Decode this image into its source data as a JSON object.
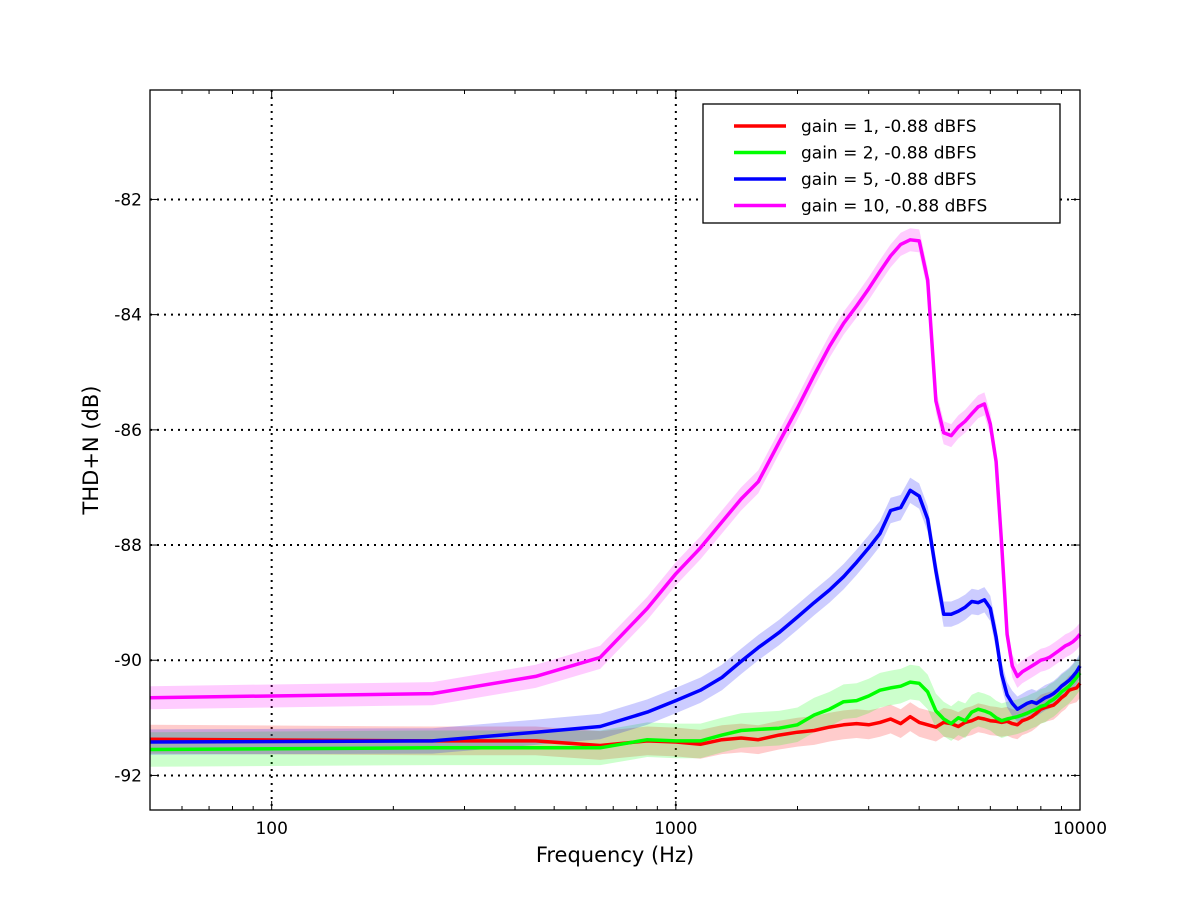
{
  "chart_data": {
    "type": "line",
    "xlabel": "Frequency (Hz)",
    "ylabel": "THD+N (dB)",
    "x_scale": "log",
    "xlim": [
      50,
      10000
    ],
    "ylim": [
      -92.6,
      -80.1
    ],
    "grid": true,
    "legend_position": "top-right",
    "x_ticks": [
      {
        "value": 100,
        "label": "100"
      },
      {
        "value": 1000,
        "label": "1000"
      },
      {
        "value": 10000,
        "label": "10000"
      }
    ],
    "y_ticks": [
      {
        "value": -82,
        "label": "-82"
      },
      {
        "value": -84,
        "label": "-84"
      },
      {
        "value": -86,
        "label": "-86"
      },
      {
        "value": -88,
        "label": "-88"
      },
      {
        "value": -90,
        "label": "-90"
      },
      {
        "value": -92,
        "label": "-92"
      }
    ],
    "series": [
      {
        "name": "gain = 1, -0.88 dBFS",
        "color": "#ff0000",
        "band": 0.25,
        "x": [
          50,
          250,
          450,
          650,
          850,
          1000,
          1150,
          1300,
          1450,
          1600,
          1800,
          2000,
          2200,
          2400,
          2600,
          2800,
          3000,
          3200,
          3400,
          3600,
          3800,
          4000,
          4200,
          4400,
          4600,
          4800,
          5000,
          5200,
          5400,
          5600,
          5800,
          6000,
          6200,
          6400,
          6600,
          6800,
          7000,
          7200,
          7400,
          7600,
          7800,
          8000,
          8200,
          8400,
          8600,
          8800,
          9000,
          9200,
          9400,
          9600,
          9800,
          10000
        ],
        "y": [
          -91.37,
          -91.4,
          -91.4,
          -91.48,
          -91.4,
          -91.42,
          -91.46,
          -91.38,
          -91.35,
          -91.38,
          -91.3,
          -91.25,
          -91.22,
          -91.16,
          -91.12,
          -91.1,
          -91.12,
          -91.08,
          -91.02,
          -91.1,
          -90.98,
          -91.08,
          -91.12,
          -91.16,
          -91.08,
          -91.1,
          -91.15,
          -91.08,
          -91.05,
          -91.0,
          -91.02,
          -91.05,
          -91.06,
          -91.08,
          -91.06,
          -91.1,
          -91.12,
          -91.05,
          -91.02,
          -90.98,
          -90.92,
          -90.85,
          -90.82,
          -90.8,
          -90.78,
          -90.72,
          -90.65,
          -90.6,
          -90.52,
          -90.5,
          -90.48,
          -90.4
        ]
      },
      {
        "name": "gain = 2, -0.88 dBFS",
        "color": "#00ff00",
        "band": 0.3,
        "x": [
          50,
          250,
          450,
          650,
          850,
          1000,
          1150,
          1300,
          1450,
          1600,
          1800,
          2000,
          2200,
          2400,
          2600,
          2800,
          3000,
          3200,
          3400,
          3600,
          3800,
          4000,
          4200,
          4400,
          4600,
          4800,
          5000,
          5200,
          5400,
          5600,
          5800,
          6000,
          6200,
          6400,
          6600,
          6800,
          7000,
          7200,
          7400,
          7600,
          7800,
          8000,
          8200,
          8400,
          8600,
          8800,
          9000,
          9200,
          9400,
          9600,
          9800,
          10000
        ],
        "y": [
          -91.55,
          -91.52,
          -91.52,
          -91.52,
          -91.38,
          -91.4,
          -91.4,
          -91.3,
          -91.22,
          -91.2,
          -91.18,
          -91.12,
          -90.95,
          -90.85,
          -90.72,
          -90.7,
          -90.62,
          -90.52,
          -90.48,
          -90.45,
          -90.38,
          -90.4,
          -90.55,
          -90.88,
          -91.02,
          -91.1,
          -91.0,
          -91.05,
          -90.9,
          -90.85,
          -90.88,
          -90.92,
          -91.0,
          -91.05,
          -91.02,
          -91.0,
          -90.98,
          -90.95,
          -90.92,
          -90.88,
          -90.85,
          -90.8,
          -90.78,
          -90.72,
          -90.68,
          -90.62,
          -90.55,
          -90.5,
          -90.45,
          -90.38,
          -90.3,
          -90.22
        ]
      },
      {
        "name": "gain = 5, -0.88 dBFS",
        "color": "#0000ff",
        "band": 0.22,
        "x": [
          50,
          250,
          450,
          650,
          850,
          1000,
          1150,
          1300,
          1450,
          1600,
          1800,
          2000,
          2200,
          2400,
          2600,
          2800,
          3000,
          3200,
          3400,
          3600,
          3800,
          4000,
          4200,
          4400,
          4600,
          4800,
          5000,
          5200,
          5400,
          5600,
          5800,
          6000,
          6200,
          6400,
          6600,
          6800,
          7000,
          7200,
          7400,
          7600,
          7800,
          8000,
          8200,
          8400,
          8600,
          8800,
          9000,
          9200,
          9400,
          9600,
          9800,
          10000
        ],
        "y": [
          -91.42,
          -91.4,
          -91.25,
          -91.15,
          -90.9,
          -90.7,
          -90.52,
          -90.3,
          -90.02,
          -89.78,
          -89.52,
          -89.25,
          -89.0,
          -88.78,
          -88.55,
          -88.3,
          -88.05,
          -87.8,
          -87.4,
          -87.35,
          -87.05,
          -87.15,
          -87.55,
          -88.45,
          -89.2,
          -89.2,
          -89.15,
          -89.08,
          -88.98,
          -89.0,
          -88.95,
          -89.1,
          -89.6,
          -90.25,
          -90.6,
          -90.75,
          -90.85,
          -90.8,
          -90.75,
          -90.72,
          -90.75,
          -90.7,
          -90.65,
          -90.62,
          -90.58,
          -90.52,
          -90.45,
          -90.4,
          -90.35,
          -90.28,
          -90.2,
          -90.1
        ]
      },
      {
        "name": "gain = 10, -0.88 dBFS",
        "color": "#ff00ff",
        "band": 0.2,
        "x": [
          50,
          250,
          450,
          650,
          850,
          1000,
          1150,
          1300,
          1450,
          1600,
          1800,
          2000,
          2200,
          2400,
          2600,
          2800,
          3000,
          3200,
          3400,
          3600,
          3800,
          4000,
          4200,
          4400,
          4600,
          4800,
          5000,
          5200,
          5400,
          5600,
          5800,
          6000,
          6200,
          6400,
          6600,
          6800,
          7000,
          7200,
          7400,
          7600,
          7800,
          8000,
          8200,
          8400,
          8600,
          8800,
          9000,
          9200,
          9400,
          9600,
          9800,
          10000
        ],
        "y": [
          -90.65,
          -90.58,
          -90.28,
          -89.95,
          -89.1,
          -88.5,
          -88.05,
          -87.6,
          -87.2,
          -86.9,
          -86.22,
          -85.62,
          -85.05,
          -84.55,
          -84.15,
          -83.85,
          -83.55,
          -83.25,
          -82.98,
          -82.78,
          -82.7,
          -82.72,
          -83.4,
          -85.5,
          -86.05,
          -86.1,
          -85.95,
          -85.85,
          -85.72,
          -85.6,
          -85.55,
          -85.9,
          -86.55,
          -88.0,
          -89.55,
          -90.1,
          -90.28,
          -90.2,
          -90.15,
          -90.1,
          -90.05,
          -90.0,
          -89.98,
          -89.95,
          -89.9,
          -89.85,
          -89.8,
          -89.75,
          -89.72,
          -89.68,
          -89.62,
          -89.55
        ]
      }
    ]
  }
}
